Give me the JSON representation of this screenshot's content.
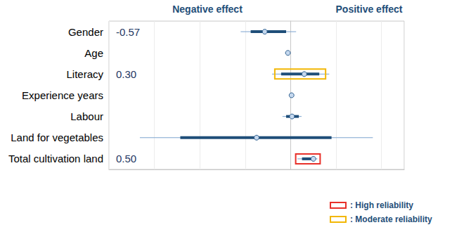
{
  "chart_data": {
    "type": "forest",
    "effect_labels": {
      "negative": "Negative effect",
      "positive": "Positive effect"
    },
    "categories": [
      "Gender",
      "Age",
      "Literacy",
      "Experience years",
      "Labour",
      "Land for vegetables",
      "Total cultivation land"
    ],
    "values": [
      -0.57,
      -0.06,
      0.3,
      0.02,
      0.03,
      -0.75,
      0.5
    ],
    "ci_outer": [
      [
        -1.1,
        0.12
      ],
      [
        -0.08,
        -0.04
      ],
      [
        -0.41,
        0.85
      ],
      [
        -0.01,
        0.05
      ],
      [
        -0.18,
        0.24
      ],
      [
        -3.32,
        1.81
      ],
      [
        0.15,
        0.59
      ]
    ],
    "ci_inner": [
      [
        -0.88,
        -0.1
      ],
      [
        -0.07,
        -0.05
      ],
      [
        -0.21,
        0.63
      ],
      [
        0.0,
        0.04
      ],
      [
        -0.1,
        0.18
      ],
      [
        -2.43,
        0.9
      ],
      [
        0.25,
        0.51
      ]
    ],
    "annotations": [
      {
        "category": "Gender",
        "text": "-0.57"
      },
      {
        "category": "Literacy",
        "text": "0.30"
      },
      {
        "category": "Total cultivation land",
        "text": "0.50"
      }
    ],
    "highlights": [
      {
        "category": "Total cultivation land",
        "label": ": High reliability",
        "color": "#e8302a"
      },
      {
        "category": "Literacy",
        "label": ": Moderate reliability",
        "color": "#f2b705"
      }
    ],
    "xlim": [
      -4,
      2.5
    ],
    "xticks": [
      -4,
      -3,
      -2,
      -1,
      0,
      1,
      2
    ],
    "grid": true,
    "tick_labels": "y",
    "color": "#1f4e79"
  }
}
